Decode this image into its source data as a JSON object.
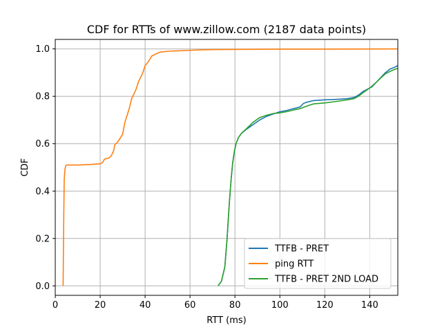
{
  "chart_data": {
    "type": "line",
    "title": "CDF for RTTs of www.zillow.com (2187 data points)",
    "xlabel": "RTT (ms)",
    "ylabel": "CDF",
    "xlim": [
      0,
      152.5
    ],
    "ylim": [
      -0.04,
      1.04
    ],
    "x_ticks": [
      0,
      20,
      40,
      60,
      80,
      100,
      120,
      140
    ],
    "y_ticks": [
      0.0,
      0.2,
      0.4,
      0.6,
      0.8,
      1.0
    ],
    "x_tick_labels": [
      "0",
      "20",
      "40",
      "60",
      "80",
      "100",
      "120",
      "140"
    ],
    "y_tick_labels": [
      "0.0",
      "0.2",
      "0.4",
      "0.6",
      "0.8",
      "1.0"
    ],
    "grid": true,
    "legend_position": "lower-right",
    "series": [
      {
        "name": "TTFB - PRET",
        "color": "#1f77b4",
        "x": [
          72.5,
          74,
          75.5,
          76.5,
          77.5,
          78.3,
          79,
          79.8,
          80.5,
          81.5,
          83,
          85,
          88,
          91,
          94,
          97,
          100,
          103,
          106,
          109,
          110.5,
          112,
          115,
          120,
          125,
          130,
          133,
          135,
          137,
          139,
          141,
          143,
          145,
          147,
          149,
          151,
          152.5
        ],
        "y": [
          0.0,
          0.02,
          0.08,
          0.2,
          0.35,
          0.45,
          0.52,
          0.57,
          0.6,
          0.625,
          0.645,
          0.66,
          0.68,
          0.7,
          0.715,
          0.725,
          0.735,
          0.74,
          0.748,
          0.755,
          0.77,
          0.775,
          0.782,
          0.785,
          0.787,
          0.79,
          0.795,
          0.805,
          0.82,
          0.83,
          0.84,
          0.86,
          0.88,
          0.9,
          0.915,
          0.922,
          0.93
        ]
      },
      {
        "name": "ping RTT",
        "color": "#ff7f0e",
        "x": [
          3.5,
          3.8,
          4.0,
          4.3,
          4.6,
          5.0,
          6,
          10,
          15,
          20,
          21,
          22,
          24,
          25,
          26,
          26.5,
          27,
          28,
          29,
          30,
          31,
          32,
          33,
          34,
          35,
          36,
          37,
          38,
          39,
          40,
          41,
          42,
          43,
          44,
          45,
          47,
          50,
          55,
          60,
          65,
          70,
          80,
          100,
          120,
          152.5
        ],
        "y": [
          0.0,
          0.3,
          0.45,
          0.49,
          0.505,
          0.51,
          0.51,
          0.51,
          0.512,
          0.515,
          0.52,
          0.535,
          0.54,
          0.55,
          0.57,
          0.595,
          0.6,
          0.61,
          0.625,
          0.64,
          0.69,
          0.72,
          0.75,
          0.79,
          0.81,
          0.83,
          0.86,
          0.88,
          0.9,
          0.93,
          0.94,
          0.955,
          0.97,
          0.975,
          0.98,
          0.987,
          0.99,
          0.992,
          0.994,
          0.996,
          0.997,
          0.998,
          0.999,
          0.999,
          1.0
        ]
      },
      {
        "name": "TTFB - PRET 2ND LOAD",
        "color": "#2ca02c",
        "x": [
          72.5,
          74,
          75.5,
          76.5,
          77.5,
          78.3,
          79,
          79.8,
          80.5,
          81.5,
          83,
          85,
          88,
          91,
          94,
          97,
          100,
          103,
          106,
          109,
          111,
          113,
          115,
          120,
          125,
          130,
          133,
          135,
          137,
          139,
          141,
          143,
          145,
          147,
          149,
          151,
          152.5
        ],
        "y": [
          0.0,
          0.02,
          0.08,
          0.2,
          0.35,
          0.45,
          0.52,
          0.57,
          0.6,
          0.625,
          0.645,
          0.662,
          0.69,
          0.71,
          0.72,
          0.727,
          0.73,
          0.735,
          0.742,
          0.748,
          0.755,
          0.762,
          0.768,
          0.772,
          0.778,
          0.785,
          0.79,
          0.8,
          0.815,
          0.828,
          0.843,
          0.86,
          0.878,
          0.895,
          0.905,
          0.913,
          0.918
        ]
      }
    ]
  }
}
